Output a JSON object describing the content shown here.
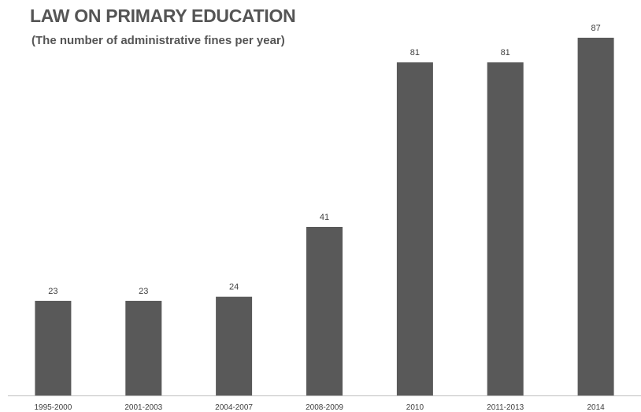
{
  "chart_data": {
    "type": "bar",
    "title": "LAW ON PRIMARY EDUCATION",
    "subtitle": "(The number of administrative fines per year)",
    "xlabel": "",
    "ylabel": "",
    "categories": [
      "1995-2000",
      "2001-2003",
      "2004-2007",
      "2008-2009",
      "2010",
      "2011-2013",
      "2014"
    ],
    "values": [
      23,
      23,
      24,
      41,
      81,
      81,
      87
    ],
    "ylim": [
      0,
      100
    ],
    "grid": false,
    "legend": "none",
    "bar_color": "#595959"
  }
}
